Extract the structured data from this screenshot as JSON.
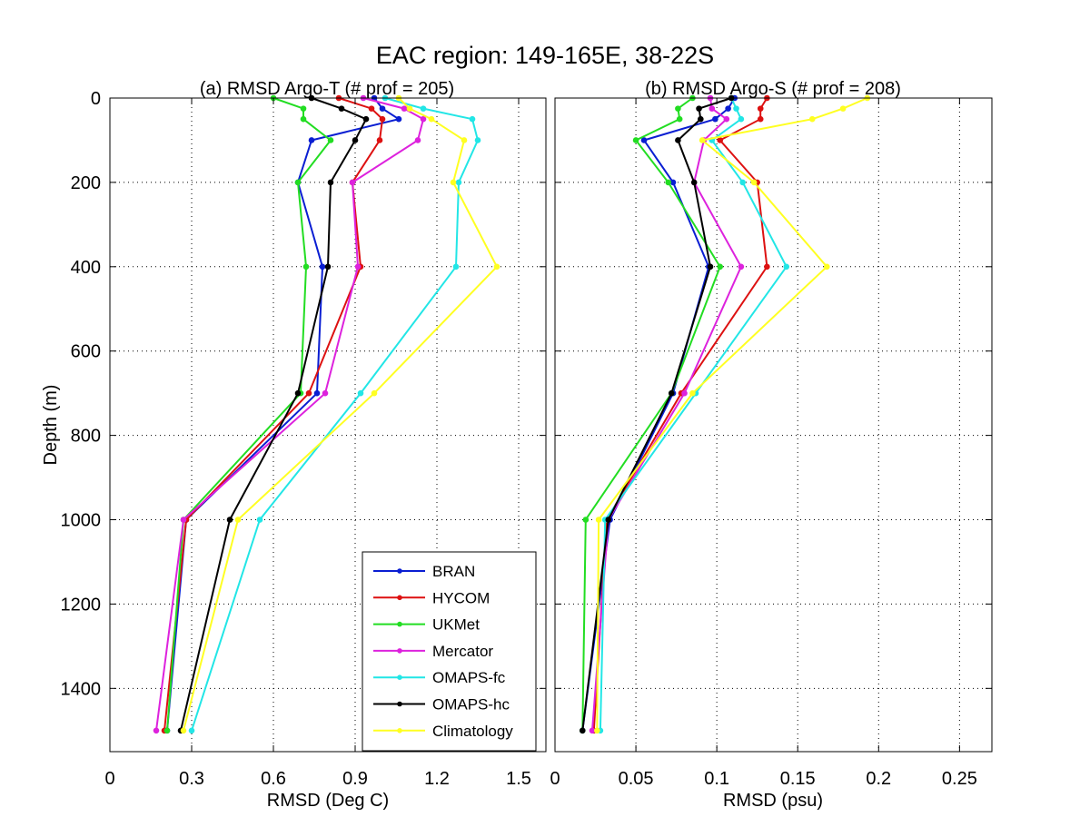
{
  "figure": {
    "title": "EAC region: 149-165E, 38-22S"
  },
  "legend": {
    "placement": "bottom-right of panel (a)",
    "entries": [
      {
        "name": "BRAN",
        "color": "#0a1ed2"
      },
      {
        "name": "HYCOM",
        "color": "#dd1111"
      },
      {
        "name": "UKMet",
        "color": "#22dd22"
      },
      {
        "name": "Mercator",
        "color": "#dd22dd"
      },
      {
        "name": "OMAPS-fc",
        "color": "#22e6e6"
      },
      {
        "name": "OMAPS-hc",
        "color": "#000000"
      },
      {
        "name": "Climatology",
        "color": "#ffff22"
      }
    ]
  },
  "chart_data": [
    {
      "type": "line",
      "title": "(a) RMSD Argo-T (# prof = 205)",
      "xlabel": "RMSD (Deg C)",
      "ylabel": "Depth (m)",
      "xlim": [
        0,
        1.6
      ],
      "ylim": [
        1550,
        0
      ],
      "y_reversed": true,
      "xticks": [
        0,
        0.3,
        0.6,
        0.9,
        1.2,
        1.5
      ],
      "xtick_labels": [
        "0",
        "0.3",
        "0.6",
        "0.9",
        "1.2",
        "1.5"
      ],
      "yticks": [
        0,
        200,
        400,
        600,
        800,
        1000,
        1200,
        1400
      ],
      "ytick_labels": [
        "0",
        "200",
        "400",
        "600",
        "800",
        "1000",
        "1200",
        "1400"
      ],
      "grid": true,
      "series": [
        {
          "name": "BRAN",
          "color": "#0a1ed2",
          "x": [
            0.97,
            1.0,
            1.06,
            0.74,
            0.69,
            0.78,
            0.76,
            0.28,
            0.21
          ],
          "y": [
            0,
            25,
            50,
            100,
            200,
            400,
            700,
            1000,
            1500
          ]
        },
        {
          "name": "HYCOM",
          "color": "#dd1111",
          "x": [
            0.84,
            0.96,
            1.0,
            0.99,
            0.89,
            0.92,
            0.73,
            0.28,
            0.2
          ],
          "y": [
            0,
            25,
            50,
            100,
            200,
            400,
            700,
            1000,
            1500
          ]
        },
        {
          "name": "UKMet",
          "color": "#22dd22",
          "x": [
            0.6,
            0.71,
            0.71,
            0.81,
            0.69,
            0.72,
            0.7,
            0.27,
            0.21
          ],
          "y": [
            0,
            25,
            50,
            100,
            200,
            400,
            700,
            1000,
            1500
          ]
        },
        {
          "name": "Mercator",
          "color": "#dd22dd",
          "x": [
            0.93,
            1.08,
            1.15,
            1.13,
            0.89,
            0.91,
            0.79,
            0.27,
            0.17
          ],
          "y": [
            0,
            25,
            50,
            100,
            200,
            400,
            700,
            1000,
            1500
          ]
        },
        {
          "name": "OMAPS-fc",
          "color": "#22e6e6",
          "x": [
            1.01,
            1.15,
            1.33,
            1.35,
            1.28,
            1.27,
            0.92,
            0.55,
            0.3
          ],
          "y": [
            0,
            25,
            50,
            100,
            200,
            400,
            700,
            1000,
            1500
          ]
        },
        {
          "name": "OMAPS-hc",
          "color": "#000000",
          "x": [
            0.74,
            0.85,
            0.94,
            0.9,
            0.81,
            0.8,
            0.69,
            0.44,
            0.26
          ],
          "y": [
            0,
            25,
            50,
            100,
            200,
            400,
            700,
            1000,
            1500
          ]
        },
        {
          "name": "Climatology",
          "color": "#ffff22",
          "x": [
            1.06,
            1.1,
            1.18,
            1.3,
            1.26,
            1.42,
            0.97,
            0.47,
            0.27
          ],
          "y": [
            0,
            25,
            50,
            100,
            200,
            400,
            700,
            1000,
            1500
          ]
        }
      ]
    },
    {
      "type": "line",
      "title": "(b) RMSD Argo-S (# prof = 208)",
      "xlabel": "RMSD (psu)",
      "ylabel": "",
      "xlim": [
        0,
        0.27
      ],
      "ylim": [
        1550,
        0
      ],
      "y_reversed": true,
      "xticks": [
        0,
        0.05,
        0.1,
        0.15,
        0.2,
        0.25
      ],
      "xtick_labels": [
        "0",
        "0.05",
        "0.1",
        "0.15",
        "0.2",
        "0.25"
      ],
      "yticks": [
        0,
        200,
        400,
        600,
        800,
        1000,
        1200,
        1400
      ],
      "ytick_labels": [],
      "grid": true,
      "series": [
        {
          "name": "BRAN",
          "color": "#0a1ed2",
          "x": [
            0.111,
            0.107,
            0.099,
            0.055,
            0.073,
            0.095,
            0.073,
            0.034,
            0.017
          ],
          "y": [
            0,
            25,
            50,
            100,
            200,
            400,
            700,
            1000,
            1500
          ]
        },
        {
          "name": "HYCOM",
          "color": "#dd1111",
          "x": [
            0.131,
            0.127,
            0.127,
            0.102,
            0.125,
            0.131,
            0.078,
            0.032,
            0.024
          ],
          "y": [
            0,
            25,
            50,
            100,
            200,
            400,
            700,
            1000,
            1500
          ]
        },
        {
          "name": "UKMet",
          "color": "#22dd22",
          "x": [
            0.085,
            0.076,
            0.077,
            0.05,
            0.07,
            0.102,
            0.072,
            0.019,
            0.017
          ],
          "y": [
            0,
            25,
            50,
            100,
            200,
            400,
            700,
            1000,
            1500
          ]
        },
        {
          "name": "Mercator",
          "color": "#dd22dd",
          "x": [
            0.096,
            0.097,
            0.106,
            0.092,
            0.086,
            0.115,
            0.08,
            0.033,
            0.023
          ],
          "y": [
            0,
            25,
            50,
            100,
            200,
            400,
            700,
            1000,
            1500
          ]
        },
        {
          "name": "OMAPS-fc",
          "color": "#22e6e6",
          "x": [
            0.109,
            0.112,
            0.115,
            0.097,
            0.116,
            0.143,
            0.087,
            0.031,
            0.028
          ],
          "y": [
            0,
            25,
            50,
            100,
            200,
            400,
            700,
            1000,
            1500
          ]
        },
        {
          "name": "OMAPS-hc",
          "color": "#000000",
          "x": [
            0.109,
            0.089,
            0.09,
            0.076,
            0.086,
            0.096,
            0.072,
            0.033,
            0.017
          ],
          "y": [
            0,
            25,
            50,
            100,
            200,
            400,
            700,
            1000,
            1500
          ]
        },
        {
          "name": "Climatology",
          "color": "#ffff22",
          "x": [
            0.193,
            0.178,
            0.159,
            0.091,
            0.123,
            0.168,
            0.085,
            0.027,
            0.026
          ],
          "y": [
            0,
            25,
            50,
            100,
            200,
            400,
            700,
            1000,
            1500
          ]
        }
      ]
    }
  ]
}
